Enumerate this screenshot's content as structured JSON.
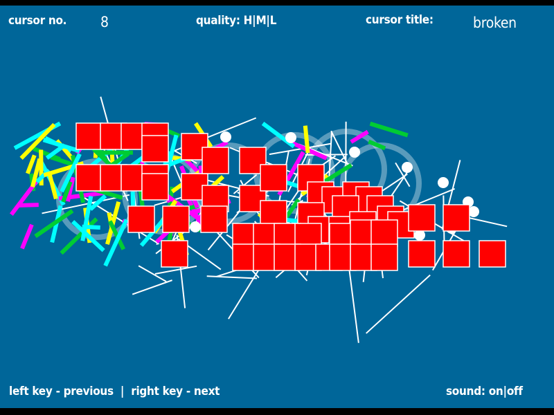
{
  "header": {
    "cursor_no_label": "cursor no.",
    "cursor_no_value": "8",
    "quality_label": "quality:",
    "quality_options": [
      "H",
      "M",
      "L"
    ],
    "cursor_title_label": "cursor title:",
    "cursor_title_value": "broken"
  },
  "footer": {
    "prev_hint": "left key - previous",
    "separator": "|",
    "next_hint": "right key - next",
    "sound_label": "sound:",
    "sound_options": [
      "on",
      "off"
    ]
  },
  "colors": {
    "background": "#006699",
    "square": "#ff0000",
    "stroke": "#ffffff",
    "accents": [
      "#ffff00",
      "#ff00ff",
      "#00ffff",
      "#00cc33"
    ]
  }
}
